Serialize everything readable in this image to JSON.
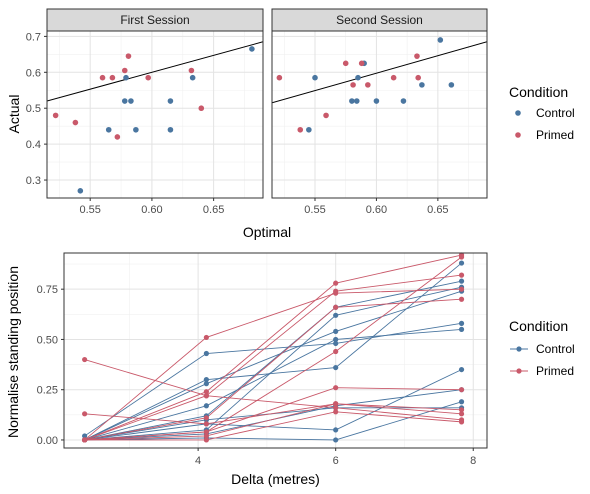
{
  "colors": {
    "Control": "#4a76a0",
    "Primed": "#c9596a",
    "reference_line": "#000000"
  },
  "chart_data": [
    {
      "type": "scatter",
      "facets": [
        "First Session",
        "Second Session"
      ],
      "xlabel": "Optimal",
      "ylabel": "Actual",
      "xlim": [
        0.515,
        0.69
      ],
      "ylim": [
        0.25,
        0.715
      ],
      "x_ticks": [
        "0.55",
        "0.60",
        "0.65"
      ],
      "x_tick_values": [
        0.55,
        0.6,
        0.65
      ],
      "y_ticks": [
        "0.3",
        "0.4",
        "0.5",
        "0.6",
        "0.7"
      ],
      "y_tick_values": [
        0.3,
        0.4,
        0.5,
        0.6,
        0.7
      ],
      "grid": true,
      "legend_title": "Condition",
      "legend_entries": [
        "Control",
        "Primed"
      ],
      "reference_lines": [
        {
          "facet": "First Session",
          "x": [
            0.515,
            0.69
          ],
          "y": [
            0.52,
            0.685
          ]
        },
        {
          "facet": "Second Session",
          "x": [
            0.515,
            0.69
          ],
          "y": [
            0.515,
            0.685
          ]
        }
      ],
      "series": [
        {
          "facet": "First Session",
          "name": "Control",
          "points": [
            [
              0.542,
              0.27
            ],
            [
              0.565,
              0.44
            ],
            [
              0.578,
              0.52
            ],
            [
              0.579,
              0.585
            ],
            [
              0.583,
              0.52
            ],
            [
              0.587,
              0.44
            ],
            [
              0.615,
              0.44
            ],
            [
              0.615,
              0.52
            ],
            [
              0.633,
              0.585
            ],
            [
              0.681,
              0.665
            ]
          ]
        },
        {
          "facet": "First Session",
          "name": "Primed",
          "points": [
            [
              0.522,
              0.48
            ],
            [
              0.538,
              0.46
            ],
            [
              0.56,
              0.585
            ],
            [
              0.568,
              0.585
            ],
            [
              0.572,
              0.42
            ],
            [
              0.578,
              0.605
            ],
            [
              0.581,
              0.645
            ],
            [
              0.597,
              0.585
            ],
            [
              0.632,
              0.605
            ],
            [
              0.64,
              0.5
            ]
          ]
        },
        {
          "facet": "Second Session",
          "name": "Control",
          "points": [
            [
              0.545,
              0.44
            ],
            [
              0.55,
              0.585
            ],
            [
              0.58,
              0.52
            ],
            [
              0.584,
              0.52
            ],
            [
              0.585,
              0.585
            ],
            [
              0.59,
              0.625
            ],
            [
              0.6,
              0.52
            ],
            [
              0.622,
              0.52
            ],
            [
              0.637,
              0.565
            ],
            [
              0.652,
              0.69
            ],
            [
              0.661,
              0.565
            ]
          ]
        },
        {
          "facet": "Second Session",
          "name": "Primed",
          "points": [
            [
              0.521,
              0.585
            ],
            [
              0.538,
              0.44
            ],
            [
              0.559,
              0.48
            ],
            [
              0.575,
              0.625
            ],
            [
              0.581,
              0.565
            ],
            [
              0.588,
              0.625
            ],
            [
              0.593,
              0.565
            ],
            [
              0.614,
              0.585
            ],
            [
              0.633,
              0.645
            ],
            [
              0.634,
              0.585
            ]
          ]
        }
      ]
    },
    {
      "type": "line",
      "xlabel": "Delta (metres)",
      "ylabel": "Normalise standing position",
      "xlim": [
        2.05,
        8.2
      ],
      "ylim": [
        -0.04,
        0.93
      ],
      "x_ticks": [
        "4",
        "6",
        "8"
      ],
      "x_tick_values": [
        4,
        6,
        8
      ],
      "y_ticks": [
        "0.00",
        "0.25",
        "0.50",
        "0.75"
      ],
      "y_tick_values": [
        0,
        0.25,
        0.5,
        0.75
      ],
      "grid": true,
      "legend_title": "Condition",
      "legend_entries": [
        "Control",
        "Primed"
      ],
      "x_values": [
        2.35,
        4.12,
        6.0,
        7.83
      ],
      "series": [
        {
          "name": "Control",
          "values": [
            0.02,
            0.43,
            0.48,
            0.58
          ]
        },
        {
          "name": "Control",
          "values": [
            0.0,
            0.3,
            0.36,
            0.88
          ]
        },
        {
          "name": "Control",
          "values": [
            0.0,
            0.28,
            0.54,
            0.74
          ]
        },
        {
          "name": "Control",
          "values": [
            0.0,
            0.17,
            0.5,
            0.55
          ]
        },
        {
          "name": "Control",
          "values": [
            0.0,
            0.12,
            0.66,
            0.79
          ]
        },
        {
          "name": "Control",
          "values": [
            0.0,
            0.08,
            0.05,
            0.35
          ]
        },
        {
          "name": "Control",
          "values": [
            0.0,
            0.05,
            0.62,
            0.76
          ]
        },
        {
          "name": "Control",
          "values": [
            0.0,
            0.03,
            0.17,
            0.25
          ]
        },
        {
          "name": "Control",
          "values": [
            0.0,
            0.01,
            0.0,
            0.19
          ]
        },
        {
          "name": "Control",
          "values": [
            0.0,
            0.1,
            0.16,
            0.16
          ]
        },
        {
          "name": "Primed",
          "values": [
            0.4,
            0.22,
            0.16,
            0.1
          ]
        },
        {
          "name": "Primed",
          "values": [
            0.13,
            0.08,
            0.18,
            0.15
          ]
        },
        {
          "name": "Primed",
          "values": [
            0.0,
            0.51,
            0.73,
            0.75
          ]
        },
        {
          "name": "Primed",
          "values": [
            0.0,
            0.24,
            0.78,
            0.92
          ]
        },
        {
          "name": "Primed",
          "values": [
            0.0,
            0.22,
            0.74,
            0.82
          ]
        },
        {
          "name": "Primed",
          "values": [
            0.0,
            0.04,
            0.44,
            0.91
          ]
        },
        {
          "name": "Primed",
          "values": [
            0.0,
            0.11,
            0.66,
            0.7
          ]
        },
        {
          "name": "Primed",
          "values": [
            0.0,
            0.04,
            0.26,
            0.25
          ]
        },
        {
          "name": "Primed",
          "values": [
            0.0,
            0.02,
            0.18,
            0.13
          ]
        },
        {
          "name": "Primed",
          "values": [
            0.0,
            0.0,
            0.14,
            0.09
          ]
        }
      ]
    }
  ]
}
